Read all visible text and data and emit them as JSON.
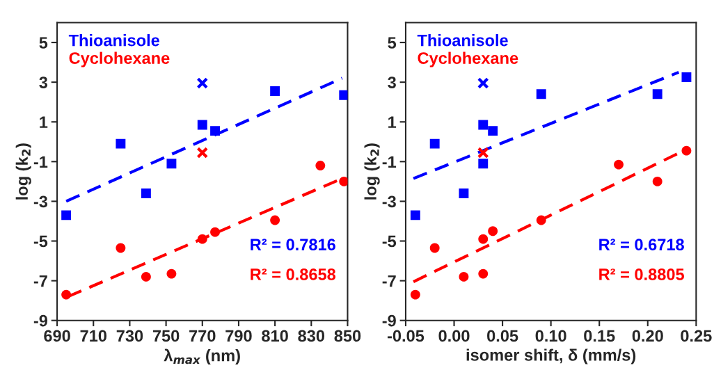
{
  "chart_data": [
    {
      "type": "scatter",
      "xlabel": "λ$_{max}$ (nm)",
      "ylabel": "log (k$_{2}$)",
      "xlim": [
        690,
        850
      ],
      "xticks": [
        690,
        710,
        730,
        750,
        770,
        790,
        810,
        830,
        850
      ],
      "ylim": [
        -9,
        6
      ],
      "yticks": [
        -9,
        -7,
        -5,
        -3,
        -1,
        1,
        3,
        5
      ],
      "grid": false,
      "legend": "top left",
      "annotations": [
        "R² = 0.7816",
        "R² = 0.8658"
      ],
      "series": [
        {
          "name": "Thioanisole",
          "color": "#0000ff",
          "marker": "square",
          "x": [
            695,
            725,
            739,
            753,
            770,
            777,
            810,
            848
          ],
          "values": [
            -3.7,
            -0.1,
            -2.6,
            -1.1,
            0.85,
            0.55,
            2.55,
            2.35
          ]
        },
        {
          "name": "Cyclohexane",
          "color": "#ff0000",
          "marker": "circle",
          "x": [
            695,
            725,
            739,
            753,
            770,
            777,
            810,
            835,
            848
          ],
          "values": [
            -7.7,
            -5.35,
            -6.8,
            -6.65,
            -4.9,
            -4.55,
            -3.95,
            -1.2,
            -2.0
          ]
        },
        {
          "color": "#0000ff",
          "marker": "cross",
          "x": [
            770
          ],
          "values": [
            2.95
          ]
        },
        {
          "color": "#ff0000",
          "marker": "cross",
          "x": [
            770
          ],
          "values": [
            -0.55
          ]
        },
        {
          "type": "line",
          "color": "#0000ff",
          "line_style": "dashed",
          "marker": "none",
          "x": [
            695,
            847
          ],
          "values": [
            -3.0,
            3.2
          ]
        },
        {
          "type": "line",
          "color": "#ff0000",
          "line_style": "dashed",
          "marker": "none",
          "x": [
            696,
            847
          ],
          "values": [
            -7.8,
            -1.85
          ]
        }
      ]
    },
    {
      "type": "scatter",
      "xlabel": "isomer shift, δ (mm/s)",
      "ylabel": "log (k$_{2}$)",
      "xlim": [
        -0.05,
        0.25
      ],
      "xticks": [
        {
          "value": -0.05,
          "label": "-0.05"
        },
        {
          "value": 0,
          "label": "0.00"
        },
        0.05,
        {
          "value": 0.1,
          "label": "0.10"
        },
        0.15,
        {
          "value": 0.2,
          "label": "0.20"
        },
        0.25
      ],
      "ylim": [
        -9,
        6
      ],
      "yticks": [
        -9,
        -7,
        -5,
        -3,
        -1,
        1,
        3,
        5
      ],
      "grid": false,
      "legend": "top left",
      "annotations": [
        "R² = 0.6718",
        "R² = 0.8805"
      ],
      "series": [
        {
          "name": "Thioanisole",
          "color": "#0000ff",
          "marker": "square",
          "x": [
            -0.04,
            -0.02,
            0.01,
            0.03,
            0.03,
            0.04,
            0.09,
            0.21,
            0.24
          ],
          "values": [
            -3.7,
            -0.1,
            -2.6,
            -1.1,
            0.85,
            0.55,
            2.4,
            2.4,
            3.25
          ]
        },
        {
          "name": "Cyclohexane",
          "color": "#ff0000",
          "marker": "circle",
          "x": [
            -0.04,
            -0.02,
            0.01,
            0.03,
            0.03,
            0.04,
            0.09,
            0.17,
            0.21,
            0.24
          ],
          "values": [
            -7.7,
            -5.35,
            -6.8,
            -4.9,
            -6.65,
            -4.5,
            -3.95,
            -1.15,
            -2.0,
            -0.45
          ]
        },
        {
          "color": "#0000ff",
          "marker": "cross",
          "x": [
            0.03
          ],
          "values": [
            2.95
          ]
        },
        {
          "color": "#ff0000",
          "marker": "cross",
          "x": [
            0.03
          ],
          "values": [
            -0.55
          ]
        },
        {
          "type": "line",
          "color": "#0000ff",
          "line_style": "dashed",
          "marker": "none",
          "x": [
            -0.042,
            0.232
          ],
          "values": [
            -1.85,
            3.5
          ]
        },
        {
          "type": "line",
          "color": "#ff0000",
          "line_style": "dashed",
          "marker": "none",
          "x": [
            -0.042,
            0.233
          ],
          "values": [
            -7.05,
            -0.55
          ]
        }
      ]
    }
  ]
}
